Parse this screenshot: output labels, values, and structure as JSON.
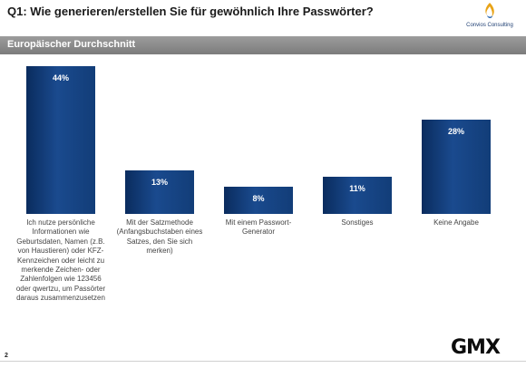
{
  "header": {
    "title": "Q1: Wie generieren/erstellen Sie für gewöhnlich Ihre Passwörter?",
    "logo_text": "Convios Consulting"
  },
  "band": {
    "label": "Europäischer Durchschnitt"
  },
  "chart_data": {
    "type": "bar",
    "title": "Q1: Wie generieren/erstellen Sie für gewöhnlich Ihre Passwörter?",
    "subtitle": "Europäischer Durchschnitt",
    "unit": "%",
    "ylim": [
      0,
      44
    ],
    "grid": false,
    "legend": "none",
    "categories": [
      "Ich nutze persönliche Informationen wie Geburtsdaten, Namen (z.B. von Haustieren) oder KFZ-Kennzeichen oder leicht zu merkende Zeichen- oder Zahlenfolgen wie 123456 oder qwertzu, um Passörter daraus zusammenzusetzen",
      "Mit der Satzmethode (Anfangsbuchstaben eines Satzes, den Sie sich merken)",
      "Mit einem Passwort-Generator",
      "Sonstiges",
      "Keine Angabe"
    ],
    "values": [
      44,
      13,
      8,
      11,
      28
    ],
    "value_labels": [
      "44%",
      "13%",
      "8%",
      "11%",
      "28%"
    ],
    "bar_color": "#123d78"
  },
  "footer": {
    "page_number": "2",
    "brand": "GMX"
  }
}
